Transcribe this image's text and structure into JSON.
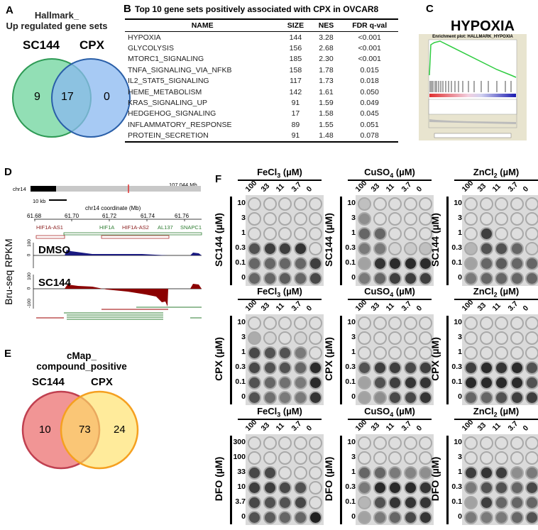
{
  "panel_a": {
    "label": "A",
    "title_line1": "Hallmark_",
    "title_line2": "Up regulated gene sets",
    "set1": "SC144",
    "set2": "CPX",
    "only1": "9",
    "both": "17",
    "only2": "0",
    "color1": "#7fd9a8",
    "color2": "#8ab8f0"
  },
  "panel_b": {
    "label": "B",
    "title": "Top 10 gene sets positively associated with CPX in OVCAR8",
    "headers": [
      "NAME",
      "SIZE",
      "NES",
      "FDR q-val"
    ],
    "rows": [
      [
        "HYPOXIA",
        "144",
        "3.28",
        "<0.001"
      ],
      [
        "GLYCOLYSIS",
        "156",
        "2.68",
        "<0.001"
      ],
      [
        "MTORC1_SIGNALING",
        "185",
        "2.30",
        "<0.001"
      ],
      [
        "TNFA_SIGNALING_VIA_NFKB",
        "158",
        "1.78",
        "0.015"
      ],
      [
        "IL2_STAT5_SIGNALING",
        "117",
        "1.73",
        "0.018"
      ],
      [
        "HEME_METABOLISM",
        "142",
        "1.61",
        "0.050"
      ],
      [
        "KRAS_SIGNALING_UP",
        "91",
        "1.59",
        "0.049"
      ],
      [
        "HEDGEHOG_SIGNALING",
        "17",
        "1.58",
        "0.045"
      ],
      [
        "INFLAMMATORY_RESPONSE",
        "89",
        "1.55",
        "0.051"
      ],
      [
        "PROTEIN_SECRETION",
        "91",
        "1.48",
        "0.078"
      ]
    ]
  },
  "panel_c": {
    "label": "C",
    "title": "HYPOXIA",
    "plot_title": "Enrichment plot: HALLMARK_HYPOXIA"
  },
  "panel_d": {
    "label": "D",
    "chrom": "chr14",
    "chrom_len": "107.044 Mb",
    "scale": "10 kb",
    "axis_title": "chr14 coordinate (Mb)",
    "ticks": [
      "61.68",
      "61.70",
      "61.72",
      "61.74",
      "61.76"
    ],
    "genes": [
      "HIF1A-AS1",
      "HIF1A",
      "HIF1A-AS2",
      "AL137",
      "SNAPC1"
    ],
    "ylabel": "Bru-seq RPKM",
    "track1": "DMSO",
    "track2": "SC144",
    "yticks": [
      "100",
      "0",
      "-100"
    ]
  },
  "panel_e": {
    "label": "E",
    "title_line1": "cMap_",
    "title_line2": "compound_positive",
    "set1": "SC144",
    "set2": "CPX",
    "only1": "10",
    "both": "73",
    "only2": "24",
    "color1": "#f08a8a",
    "color2": "#ffe066"
  },
  "panel_f": {
    "label": "F",
    "col_labels": [
      "100",
      "33",
      "11",
      "3.7",
      "0"
    ],
    "plates": [
      {
        "metal": "FeCl",
        "sub": "3",
        "unit": " (µM)",
        "drug": "SC144 (µM)",
        "rows": [
          "10",
          "3",
          "1",
          "0.3",
          "0.1",
          "0"
        ],
        "density": [
          [
            0,
            0,
            0,
            0,
            0
          ],
          [
            0,
            0,
            0,
            0,
            0
          ],
          [
            0,
            0,
            0,
            0,
            0
          ],
          [
            0.7,
            0.8,
            0.8,
            0.85,
            0
          ],
          [
            0.6,
            0.6,
            0.6,
            0.6,
            0.8
          ],
          [
            0.6,
            0.6,
            0.65,
            0.6,
            0.75
          ]
        ]
      },
      {
        "metal": "CuSO",
        "sub": "4",
        "unit": " (µM)",
        "drug": "SC144 (µM)",
        "rows": [
          "10",
          "3",
          "1",
          "0.3",
          "0.1",
          "0"
        ],
        "density": [
          [
            0.15,
            0,
            0,
            0,
            0
          ],
          [
            0.4,
            0,
            0,
            0,
            0
          ],
          [
            0.6,
            0.6,
            0,
            0,
            0
          ],
          [
            0.5,
            0.5,
            0.05,
            0.1,
            0.15
          ],
          [
            0.3,
            0.85,
            0.9,
            0.9,
            0.9
          ],
          [
            0.5,
            0.6,
            0.8,
            0.8,
            0.8
          ]
        ]
      },
      {
        "metal": "ZnCl",
        "sub": "2",
        "unit": " (µM)",
        "drug": "SC144 (µM)",
        "rows": [
          "10",
          "3",
          "1",
          "0.3",
          "0.1",
          "0"
        ],
        "density": [
          [
            0,
            0,
            0,
            0,
            0
          ],
          [
            0,
            0,
            0,
            0,
            0
          ],
          [
            0,
            0.8,
            0,
            0,
            0
          ],
          [
            0.2,
            0.7,
            0.7,
            0.6,
            0.05
          ],
          [
            0.3,
            0.6,
            0.65,
            0.6,
            0.6
          ],
          [
            0.5,
            0.6,
            0.6,
            0.6,
            0.6
          ]
        ]
      },
      {
        "metal": "FeCl",
        "sub": "3",
        "unit": " (µM)",
        "drug": "CPX (µM)",
        "rows": [
          "10",
          "3",
          "1",
          "0.3",
          "0.1",
          "0"
        ],
        "density": [
          [
            0,
            0,
            0,
            0,
            0
          ],
          [
            0.25,
            0.05,
            0,
            0.05,
            0
          ],
          [
            0.75,
            0.7,
            0.7,
            0.5,
            0
          ],
          [
            0.75,
            0.7,
            0.7,
            0.6,
            0.9
          ],
          [
            0.7,
            0.6,
            0.55,
            0.5,
            0.9
          ],
          [
            0.7,
            0.55,
            0.5,
            0.5,
            0.85
          ]
        ]
      },
      {
        "metal": "CuSO",
        "sub": "4",
        "unit": " (µM)",
        "drug": "CPX (µM)",
        "rows": [
          "10",
          "3",
          "1",
          "0.3",
          "0.1",
          "0"
        ],
        "density": [
          [
            0,
            0,
            0,
            0,
            0
          ],
          [
            0,
            0,
            0,
            0,
            0
          ],
          [
            0,
            0,
            0,
            0,
            0
          ],
          [
            0.7,
            0.8,
            0.8,
            0.75,
            0.8
          ],
          [
            0.3,
            0.7,
            0.8,
            0.85,
            0.85
          ],
          [
            0.3,
            0.4,
            0.75,
            0.75,
            0.85
          ]
        ]
      },
      {
        "metal": "ZnCl",
        "sub": "2",
        "unit": " (µM)",
        "drug": "CPX (µM)",
        "rows": [
          "10",
          "3",
          "1",
          "0.3",
          "0.1",
          "0"
        ],
        "density": [
          [
            0,
            0,
            0,
            0,
            0
          ],
          [
            0,
            0,
            0,
            0,
            0
          ],
          [
            0,
            0,
            0,
            0,
            0
          ],
          [
            0.8,
            0.9,
            0.85,
            0.9,
            0.7
          ],
          [
            0.9,
            0.9,
            0.9,
            0.9,
            0.7
          ],
          [
            0.6,
            0.6,
            0.7,
            0.8,
            0.8
          ]
        ]
      },
      {
        "metal": "FeCl",
        "sub": "3",
        "unit": " (µM)",
        "drug": "DFO (µM)",
        "rows": [
          "300",
          "100",
          "33",
          "10",
          "3.7",
          "0"
        ],
        "density": [
          [
            0,
            0,
            0,
            0,
            0
          ],
          [
            0,
            0,
            0,
            0,
            0
          ],
          [
            0.75,
            0.75,
            0,
            0,
            0
          ],
          [
            0.8,
            0.8,
            0.75,
            0.7,
            0
          ],
          [
            0.75,
            0.7,
            0.7,
            0.75,
            0
          ],
          [
            0.7,
            0.65,
            0.6,
            0.6,
            0.95
          ]
        ]
      },
      {
        "metal": "CuSO",
        "sub": "4",
        "unit": " (µM)",
        "drug": "DFO (µM)",
        "rows": [
          "10",
          "3",
          "1",
          "0.3",
          "0.1",
          "0"
        ],
        "density": [
          [
            0,
            0,
            0,
            0,
            0
          ],
          [
            0,
            0,
            0,
            0,
            0
          ],
          [
            0.6,
            0.6,
            0.5,
            0.45,
            0.4
          ],
          [
            0.5,
            0.9,
            0.9,
            0.9,
            0.85
          ],
          [
            0.2,
            0.7,
            0.85,
            0.85,
            0.85
          ],
          [
            0.3,
            0.5,
            0.6,
            0.75,
            0.85
          ]
        ]
      },
      {
        "metal": "ZnCl",
        "sub": "2",
        "unit": " (µM)",
        "drug": "DFO (µM)",
        "rows": [
          "10",
          "3",
          "1",
          "0.3",
          "0.1",
          "0"
        ],
        "density": [
          [
            0,
            0,
            0,
            0,
            0
          ],
          [
            0,
            0,
            0,
            0,
            0
          ],
          [
            0.8,
            0.85,
            0.8,
            0.4,
            0.5
          ],
          [
            0.5,
            0.7,
            0.7,
            0.6,
            0.75
          ],
          [
            0.3,
            0.8,
            0.6,
            0.6,
            0.6
          ],
          [
            0.5,
            0.5,
            0.5,
            0.6,
            0.7
          ]
        ]
      }
    ]
  }
}
